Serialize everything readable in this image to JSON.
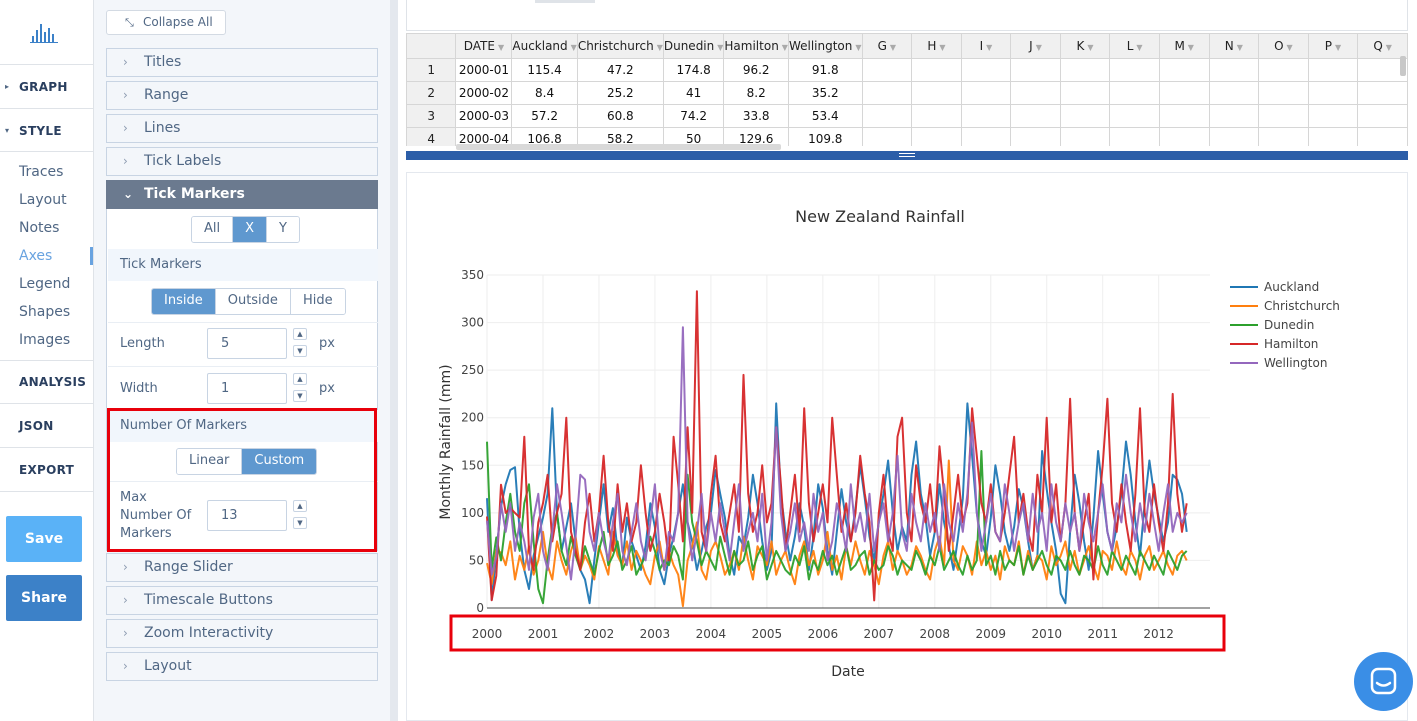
{
  "nav": {
    "sections": [
      {
        "label": "GRAPH",
        "caret": "▸"
      },
      {
        "label": "STYLE",
        "caret": "▾"
      },
      {
        "label": "ANALYSIS"
      },
      {
        "label": "JSON"
      },
      {
        "label": "EXPORT"
      }
    ],
    "style_items": [
      "Traces",
      "Layout",
      "Notes",
      "Axes",
      "Legend",
      "Shapes",
      "Images"
    ],
    "active_item": "Axes",
    "save_label": "Save",
    "share_label": "Share"
  },
  "panel": {
    "collapse_all": "Collapse All",
    "folds_top": [
      "Titles",
      "Range",
      "Lines",
      "Tick Labels"
    ],
    "open_fold": "Tick Markers",
    "axis_selector": {
      "options": [
        "All",
        "X",
        "Y"
      ],
      "selected": "X"
    },
    "tick_markers_heading": "Tick Markers",
    "placement": {
      "options": [
        "Inside",
        "Outside",
        "Hide"
      ],
      "selected": "Inside"
    },
    "length": {
      "label": "Length",
      "value": "5",
      "unit": "px"
    },
    "width": {
      "label": "Width",
      "value": "1",
      "unit": "px"
    },
    "number_of_markers_heading": "Number Of Markers",
    "mode": {
      "options": [
        "Linear",
        "Custom"
      ],
      "selected": "Custom"
    },
    "max_markers": {
      "label_lines": [
        "Max",
        "Number Of",
        "Markers"
      ],
      "value": "13"
    },
    "folds_bottom": [
      "Range Slider",
      "Timescale Buttons",
      "Zoom Interactivity",
      "Layout"
    ]
  },
  "grid": {
    "columns": [
      "DATE",
      "Auckland",
      "Christchurch",
      "Dunedin",
      "Hamilton",
      "Wellington",
      "G",
      "H",
      "I",
      "J",
      "K",
      "L",
      "M",
      "N",
      "O",
      "P",
      "Q"
    ],
    "rows": [
      {
        "n": "1",
        "cells": [
          "2000-01",
          "115.4",
          "47.2",
          "174.8",
          "96.2",
          "91.8"
        ]
      },
      {
        "n": "2",
        "cells": [
          "2000-02",
          "8.4",
          "25.2",
          "41",
          "8.2",
          "35.2"
        ]
      },
      {
        "n": "3",
        "cells": [
          "2000-03",
          "57.2",
          "60.8",
          "74.2",
          "33.8",
          "53.4"
        ]
      },
      {
        "n": "4",
        "cells": [
          "2000-04",
          "106.8",
          "58.2",
          "50",
          "129.6",
          "109.8"
        ]
      }
    ]
  },
  "chart_data": {
    "type": "line",
    "title": "New Zealand Rainfall",
    "xlabel": "Date",
    "ylabel": "Monthly Rainfall (mm)",
    "x_ticks": [
      "2000",
      "2001",
      "2002",
      "2003",
      "2004",
      "2005",
      "2006",
      "2007",
      "2008",
      "2009",
      "2010",
      "2011",
      "2012"
    ],
    "y_ticks": [
      0,
      50,
      100,
      150,
      200,
      250,
      300,
      350
    ],
    "ylim": [
      0,
      350
    ],
    "x_range": [
      "2000-01",
      "2012-12"
    ],
    "grid": true,
    "legend_position": "top-right",
    "series": [
      {
        "name": "Auckland",
        "color": "#1f77b4",
        "values": [
          115.4,
          8.4,
          57.2,
          106.8,
          130,
          145,
          148,
          80,
          40,
          20,
          55,
          75,
          95,
          120,
          210,
          100,
          60,
          85,
          110,
          70,
          40,
          30,
          5,
          50,
          90,
          130,
          80,
          105,
          60,
          45,
          95,
          70,
          55,
          40,
          65,
          110,
          85,
          40,
          25,
          55,
          75,
          100,
          130,
          90,
          70,
          40,
          60,
          85,
          100,
          145,
          120,
          95,
          55,
          35,
          75,
          65,
          95,
          140,
          110,
          70,
          40,
          60,
          215,
          120,
          80,
          50,
          75,
          110,
          85,
          40,
          75,
          130,
          105,
          60,
          35,
          80,
          125,
          90,
          70,
          105,
          150,
          115,
          75,
          50,
          90,
          120,
          155,
          100,
          60,
          85,
          70,
          140,
          175,
          120,
          95,
          55,
          80,
          130,
          90,
          65,
          40,
          75,
          115,
          215,
          160,
          100,
          70,
          55,
          95,
          150,
          120,
          80,
          60,
          85,
          125,
          105,
          70,
          40,
          55,
          165,
          125,
          90,
          60,
          15,
          5,
          80,
          140,
          110,
          70,
          40,
          95,
          165,
          120,
          80,
          60,
          85,
          120,
          175,
          140,
          90,
          55,
          110,
          155,
          120,
          95,
          70,
          90,
          140,
          135,
          120,
          80
        ]
      },
      {
        "name": "Christchurch",
        "color": "#ff7f0e",
        "values": [
          47.2,
          25.2,
          60.8,
          58.2,
          45,
          70,
          30,
          55,
          40,
          65,
          35,
          50,
          80,
          45,
          30,
          70,
          50,
          35,
          60,
          75,
          40,
          55,
          45,
          30,
          65,
          50,
          35,
          80,
          55,
          45,
          70,
          40,
          60,
          50,
          35,
          25,
          55,
          70,
          40,
          60,
          45,
          35,
          2,
          50,
          65,
          90,
          40,
          30,
          60,
          70,
          55,
          35,
          45,
          60,
          40,
          75,
          50,
          30,
          65,
          55,
          45,
          70,
          35,
          50,
          60,
          40,
          25,
          55,
          70,
          45,
          60,
          35,
          50,
          80,
          40,
          55,
          30,
          65,
          45,
          70,
          50,
          35,
          60,
          45,
          25,
          55,
          70,
          40,
          60,
          50,
          35,
          45,
          65,
          55,
          40,
          30,
          60,
          75,
          45,
          155,
          50,
          40,
          65,
          55,
          35,
          70,
          45,
          60,
          40,
          55,
          30,
          65,
          50,
          45,
          70,
          35,
          60,
          40,
          55,
          50,
          30,
          65,
          45,
          55,
          70,
          40,
          60,
          35,
          50,
          65,
          45,
          30,
          60,
          55,
          40,
          70,
          45,
          35,
          60,
          50,
          30,
          55,
          65,
          40,
          50,
          60,
          45,
          35,
          55,
          60,
          50
        ]
      },
      {
        "name": "Dunedin",
        "color": "#2ca02c",
        "values": [
          174.8,
          41,
          74.2,
          50,
          90,
          120,
          80,
          60,
          110,
          130,
          70,
          20,
          5,
          50,
          85,
          100,
          60,
          45,
          75,
          55,
          40,
          65,
          50,
          35,
          60,
          80,
          45,
          55,
          70,
          40,
          50,
          65,
          35,
          45,
          55,
          75,
          60,
          40,
          50,
          45,
          65,
          55,
          30,
          140,
          90,
          70,
          45,
          60,
          50,
          40,
          75,
          55,
          35,
          60,
          45,
          50,
          70,
          40,
          55,
          65,
          30,
          45,
          60,
          50,
          40,
          35,
          55,
          45,
          65,
          30,
          50,
          40,
          60,
          45,
          55,
          35,
          50,
          65,
          40,
          45,
          55,
          60,
          35,
          50,
          40,
          45,
          65,
          55,
          35,
          50,
          45,
          40,
          60,
          50,
          35,
          55,
          45,
          65,
          40,
          50,
          60,
          45,
          35,
          55,
          40,
          50,
          165,
          45,
          55,
          35,
          60,
          40,
          50,
          45,
          65,
          35,
          55,
          40,
          50,
          60,
          45,
          35,
          55,
          50,
          40,
          60,
          45,
          35,
          55,
          50,
          40,
          65,
          45,
          35,
          60,
          50,
          40,
          55,
          45,
          35,
          60,
          50,
          40,
          55,
          45,
          35,
          60,
          50,
          40,
          55,
          60
        ]
      },
      {
        "name": "Hamilton",
        "color": "#d62728",
        "values": [
          96.2,
          8.2,
          33.8,
          129.6,
          100,
          105,
          100,
          95,
          180,
          60,
          40,
          90,
          110,
          140,
          70,
          100,
          120,
          200,
          80,
          60,
          40,
          90,
          120,
          70,
          100,
          160,
          90,
          60,
          130,
          80,
          110,
          70,
          90,
          150,
          100,
          60,
          80,
          120,
          90,
          50,
          180,
          130,
          70,
          190,
          100,
          333,
          80,
          60,
          120,
          160,
          90,
          70,
          100,
          130,
          80,
          245,
          120,
          80,
          100,
          150,
          90,
          110,
          190,
          130,
          60,
          100,
          140,
          80,
          210,
          110,
          70,
          100,
          130,
          90,
          200,
          140,
          80,
          110,
          70,
          100,
          160,
          120,
          90,
          8,
          100,
          140,
          80,
          60,
          180,
          200,
          100,
          70,
          150,
          110,
          90,
          130,
          80,
          170,
          120,
          60,
          100,
          140,
          90,
          110,
          210,
          160,
          110,
          90,
          130,
          80,
          70,
          100,
          140,
          180,
          90,
          120,
          80,
          60,
          140,
          100,
          200,
          90,
          130,
          70,
          110,
          220,
          100,
          60,
          90,
          120,
          30,
          100,
          150,
          220,
          110,
          80,
          130,
          90,
          60,
          120,
          210,
          100,
          80,
          130,
          90,
          60,
          110,
          225,
          120,
          80,
          110
        ]
      },
      {
        "name": "Wellington",
        "color": "#9467bd",
        "values": [
          91.8,
          35.2,
          53.4,
          109.8,
          80,
          110,
          60,
          90,
          70,
          40,
          95,
          120,
          60,
          40,
          80,
          130,
          100,
          65,
          30,
          75,
          140,
          135,
          80,
          60,
          100,
          70,
          50,
          90,
          120,
          60,
          45,
          80,
          110,
          70,
          50,
          90,
          130,
          60,
          40,
          80,
          70,
          100,
          295,
          90,
          50,
          80,
          120,
          60,
          100,
          70,
          110,
          80,
          50,
          90,
          130,
          60,
          80,
          100,
          70,
          120,
          50,
          90,
          190,
          100,
          60,
          80,
          110,
          70,
          90,
          60,
          120,
          80,
          100,
          50,
          70,
          110,
          90,
          60,
          130,
          80,
          100,
          70,
          120,
          60,
          90,
          110,
          70,
          100,
          160,
          80,
          60,
          120,
          90,
          70,
          110,
          80,
          100,
          60,
          130,
          90,
          70,
          110,
          80,
          120,
          195,
          100,
          60,
          90,
          120,
          80,
          70,
          130,
          100,
          60,
          90,
          110,
          70,
          120,
          80,
          100,
          60,
          130,
          90,
          70,
          110,
          80,
          100,
          60,
          120,
          90,
          70,
          100,
          130,
          80,
          60,
          110,
          90,
          140,
          100,
          70,
          110,
          80,
          120,
          90,
          60,
          100,
          130,
          80,
          100,
          90,
          100
        ]
      }
    ]
  },
  "colors": {
    "accent": "#5f98cf",
    "highlight_box": "#e8000b",
    "save": "#5ab2f7",
    "share": "#3c81c8"
  }
}
